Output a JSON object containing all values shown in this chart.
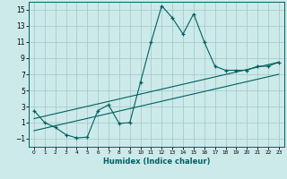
{
  "xlabel": "Humidex (Indice chaleur)",
  "ylabel": "",
  "background_color": "#cceaea",
  "grid_color": "#aacaca",
  "line_color": "#006060",
  "xlim": [
    -0.5,
    23.5
  ],
  "ylim": [
    -2,
    16
  ],
  "yticks": [
    -1,
    1,
    3,
    5,
    7,
    9,
    11,
    13,
    15
  ],
  "xticks": [
    0,
    1,
    2,
    3,
    4,
    5,
    6,
    7,
    8,
    9,
    10,
    11,
    12,
    13,
    14,
    15,
    16,
    17,
    18,
    19,
    20,
    21,
    22,
    23
  ],
  "main_x": [
    0,
    1,
    2,
    3,
    4,
    5,
    6,
    7,
    8,
    9,
    10,
    11,
    12,
    13,
    14,
    15,
    16,
    17,
    18,
    19,
    20,
    21,
    22,
    23
  ],
  "main_y": [
    2.5,
    1.0,
    0.4,
    -0.5,
    -0.9,
    -0.8,
    2.5,
    3.2,
    0.9,
    1.0,
    6.0,
    11.0,
    15.5,
    14.0,
    12.0,
    14.5,
    11.0,
    8.0,
    7.5,
    7.5,
    7.5,
    8.0,
    8.0,
    8.5
  ],
  "line1_x": [
    0,
    23
  ],
  "line1_y": [
    1.5,
    8.5
  ],
  "line2_x": [
    0,
    23
  ],
  "line2_y": [
    0.0,
    7.0
  ]
}
